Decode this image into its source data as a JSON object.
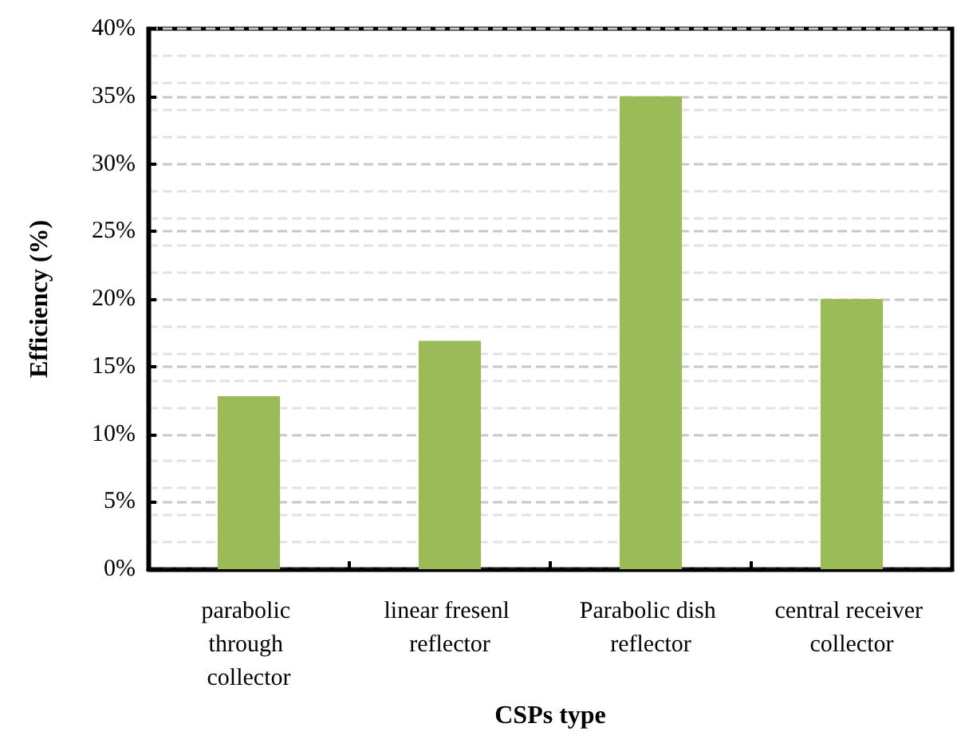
{
  "chart_data": {
    "type": "bar",
    "xlabel": "CSPs type",
    "ylabel": "Efficiency (%)",
    "categories": [
      "parabolic through collector",
      "linear fresenl reflector",
      "Parabolic dish reflector",
      "central receiver collector"
    ],
    "values": [
      12.8,
      16.9,
      35,
      20
    ],
    "color": "#9bbb59",
    "ylim": [
      0,
      40
    ],
    "yticks": [
      {
        "value": 0,
        "label": "0%"
      },
      {
        "value": 5,
        "label": "5%"
      },
      {
        "value": 10,
        "label": "10%"
      },
      {
        "value": 15,
        "label": "15%"
      },
      {
        "value": 20,
        "label": "20%"
      },
      {
        "value": 25,
        "label": "25%"
      },
      {
        "value": 30,
        "label": "30%"
      },
      {
        "value": 35,
        "label": "35%"
      },
      {
        "value": 40,
        "label": "40%"
      }
    ],
    "grid": "y"
  }
}
